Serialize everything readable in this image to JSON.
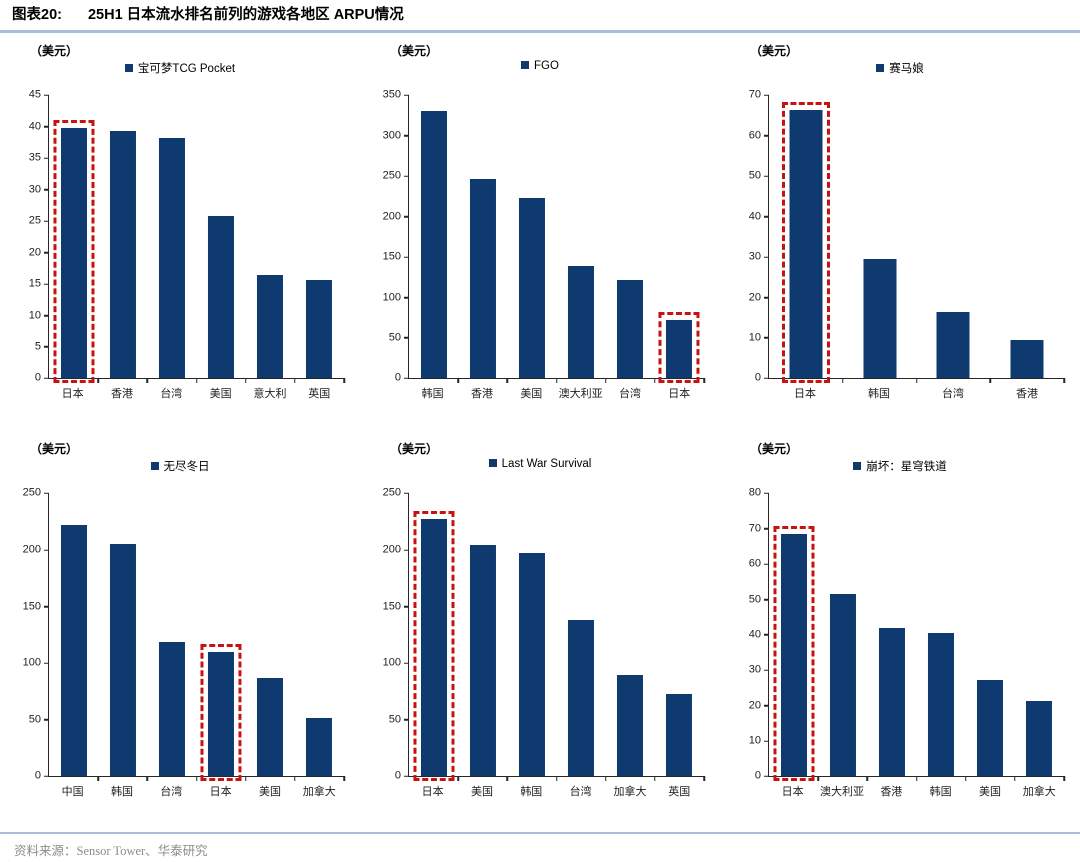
{
  "header": {
    "label": "图表20:",
    "title": "25H1 日本流水排名前列的游戏各地区 ARPU情况"
  },
  "footer": {
    "source": "资料来源：Sensor Tower、华泰研究"
  },
  "colors": {
    "bar": "#0E3A70",
    "highlight": "#C81212",
    "axis": "#262626",
    "divider_rule": "#A6BDD3",
    "footer_text": "#8C8C8C"
  },
  "chart_data": [
    {
      "type": "bar",
      "legend": "宝可梦TCG Pocket",
      "unit": "（美元）",
      "categories": [
        "日本",
        "香港",
        "台湾",
        "美国",
        "意大利",
        "英国"
      ],
      "values": [
        39.8,
        39.4,
        38.2,
        25.9,
        16.5,
        15.6
      ],
      "ylim": [
        0,
        45
      ],
      "yticks": [
        0,
        5,
        10,
        15,
        20,
        25,
        30,
        35,
        40,
        45
      ],
      "highlight_category": "日本",
      "highlight_index": 0,
      "grid": false,
      "legend_position": "top-center"
    },
    {
      "type": "bar",
      "legend": "FGO",
      "unit": "（美元）",
      "categories": [
        "韩国",
        "香港",
        "美国",
        "澳大利亚",
        "台湾",
        "日本"
      ],
      "values": [
        331,
        247,
        223,
        139,
        122,
        72
      ],
      "ylim": [
        0,
        350
      ],
      "yticks": [
        0,
        50,
        100,
        150,
        200,
        250,
        300,
        350
      ],
      "highlight_category": "日本",
      "highlight_index": 5,
      "grid": false,
      "legend_position": "top-center"
    },
    {
      "type": "bar",
      "legend": "赛马娘",
      "unit": "（美元）",
      "categories": [
        "日本",
        "韩国",
        "台湾",
        "香港"
      ],
      "values": [
        66.5,
        29.5,
        16.4,
        9.6
      ],
      "ylim": [
        0,
        70
      ],
      "yticks": [
        0,
        10,
        20,
        30,
        40,
        50,
        60,
        70
      ],
      "highlight_category": "日本",
      "highlight_index": 0,
      "grid": false,
      "legend_position": "top-center"
    },
    {
      "type": "bar",
      "legend": "无尽冬日",
      "unit": "（美元）",
      "categories": [
        "中国",
        "韩国",
        "台湾",
        "日本",
        "美国",
        "加拿大"
      ],
      "values": [
        222,
        205,
        119,
        110,
        87,
        52
      ],
      "ylim": [
        0,
        250
      ],
      "yticks": [
        0,
        50,
        100,
        150,
        200,
        250
      ],
      "highlight_category": "日本",
      "highlight_index": 3,
      "grid": false,
      "legend_position": "top-center"
    },
    {
      "type": "bar",
      "legend": "Last War Survival",
      "unit": "（美元）",
      "categories": [
        "日本",
        "美国",
        "韩国",
        "台湾",
        "加拿大",
        "英国"
      ],
      "values": [
        227,
        204,
        197,
        138,
        90,
        73
      ],
      "ylim": [
        0,
        250
      ],
      "yticks": [
        0,
        50,
        100,
        150,
        200,
        250
      ],
      "highlight_category": "日本",
      "highlight_index": 0,
      "grid": false,
      "legend_position": "top-center"
    },
    {
      "type": "bar",
      "legend": "崩坏：星穹铁道",
      "unit": "（美元）",
      "categories": [
        "日本",
        "澳大利亚",
        "香港",
        "韩国",
        "美国",
        "加拿大"
      ],
      "values": [
        68.5,
        51.5,
        42,
        40.5,
        27.2,
        21.4
      ],
      "ylim": [
        0,
        80
      ],
      "yticks": [
        0,
        10,
        20,
        30,
        40,
        50,
        60,
        70,
        80
      ],
      "highlight_category": "日本",
      "highlight_index": 0,
      "grid": false,
      "legend_position": "top-center"
    }
  ]
}
